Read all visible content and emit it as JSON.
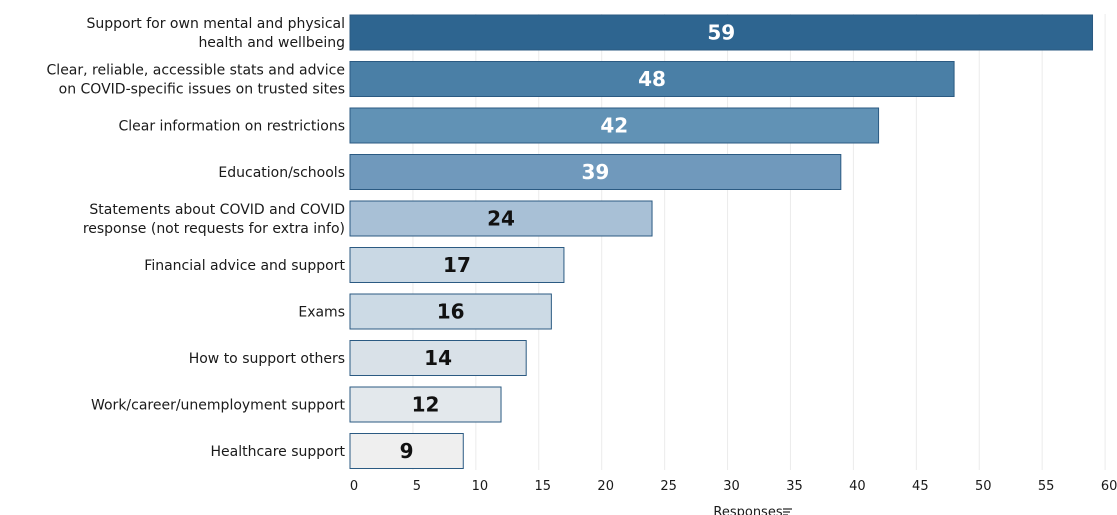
{
  "chart_data": {
    "type": "bar",
    "orientation": "horizontal",
    "categories": [
      "Support for own mental and physical\nhealth and wellbeing",
      "Clear, reliable, accessible stats and advice\non COVID-specific issues on trusted sites",
      "Clear information on restrictions",
      "Education/schools",
      "Statements about COVID and COVID\nresponse (not requests for extra info)",
      "Financial advice and support",
      "Exams",
      "How to support others",
      "Work/career/unemployment support",
      "Healthcare support"
    ],
    "values": [
      59,
      48,
      42,
      39,
      24,
      17,
      16,
      14,
      12,
      9
    ],
    "xlabel": "Responses",
    "ylabel": "",
    "xlim": [
      0,
      60
    ],
    "xticks": [
      0,
      5,
      10,
      15,
      20,
      25,
      30,
      35,
      40,
      45,
      50,
      55,
      60
    ],
    "grid": "vertical",
    "colors": {
      "bars": [
        "#2e6590",
        "#4a7fa6",
        "#6192b5",
        "#7099bc",
        "#a8c0d6",
        "#c9d8e4",
        "#ccdae5",
        "#d9e1e8",
        "#e3e8ec",
        "#efefef"
      ],
      "bar_stroke": "#2b5a82",
      "label_light": "#ffffff",
      "label_dark": "#111111"
    },
    "sort_icon": "sort-descending-icon"
  }
}
